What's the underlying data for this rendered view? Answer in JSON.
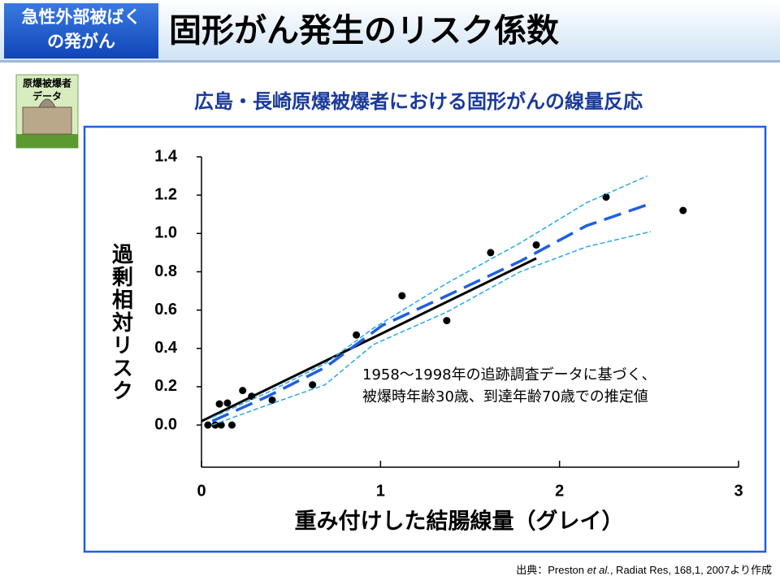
{
  "header": {
    "badge": [
      "急性外部被ばく",
      "の発がん"
    ],
    "title": "固形がん発生のリスク係数"
  },
  "icon": {
    "label": [
      "原爆被爆者",
      "データ"
    ]
  },
  "subtitle": "広島・長崎原爆被爆者における固形がんの線量反応",
  "chart_data": {
    "type": "scatter",
    "x_label": "重み付けした結腸線量（グレイ）",
    "y_label": "過剰相対リスク",
    "annotation": [
      "1958～1998年の追跡調査データに基づく、",
      "被爆時年齢30歳、到達年齢70歳での推定値"
    ],
    "xlim": [
      0,
      3
    ],
    "xticks": [
      0,
      1,
      2,
      3
    ],
    "ylim": [
      -0.22,
      1.4
    ],
    "yticks": [
      {
        "value": 0,
        "label": "0.0"
      },
      0.2,
      0.4,
      0.6,
      0.8,
      {
        "value": 1,
        "label": "1.0"
      },
      1.2,
      1.4
    ],
    "series": [
      {
        "style": "markers",
        "color": "#000000",
        "x": [
          0.036,
          0.077,
          0.11,
          0.17,
          0.1,
          0.145,
          0.23,
          0.28,
          0.395,
          0.62,
          0.865,
          1.12,
          1.37,
          1.615,
          1.87,
          2.26,
          2.69
        ],
        "values": [
          0,
          0,
          0,
          0,
          0.11,
          0.115,
          0.18,
          0.15,
          0.13,
          0.21,
          0.47,
          0.675,
          0.545,
          0.9,
          0.94,
          1.19,
          1.12
        ]
      },
      {
        "style": "solid",
        "color": "#000000",
        "x": [
          0,
          1.87
        ],
        "values": [
          0.02,
          0.87
        ]
      },
      {
        "style": "dashed",
        "color": "#1f5fe0",
        "x": [
          0.06,
          0.37,
          0.69,
          1.01,
          1.37,
          1.78,
          2.15,
          2.49
        ],
        "values": [
          0.02,
          0.15,
          0.3,
          0.52,
          0.675,
          0.855,
          1.04,
          1.15
        ]
      },
      {
        "style": "dotted",
        "color": "#29a8e8",
        "x": [
          0.06,
          0.37,
          0.69,
          0.96,
          1.37,
          1.78,
          2.15,
          2.49
        ],
        "values": [
          0.04,
          0.17,
          0.32,
          0.505,
          0.74,
          0.95,
          1.16,
          1.3
        ]
      },
      {
        "style": "dotted",
        "color": "#29a8e8",
        "x": [
          0.06,
          0.37,
          0.69,
          0.96,
          1.37,
          1.78,
          2.15,
          2.51
        ],
        "values": [
          0,
          0.105,
          0.21,
          0.42,
          0.59,
          0.8,
          0.93,
          1.01
        ]
      }
    ]
  },
  "source": [
    "出典：Preston ",
    "et al.",
    ",  Radiat Res, 168,1, 2007より作成"
  ]
}
